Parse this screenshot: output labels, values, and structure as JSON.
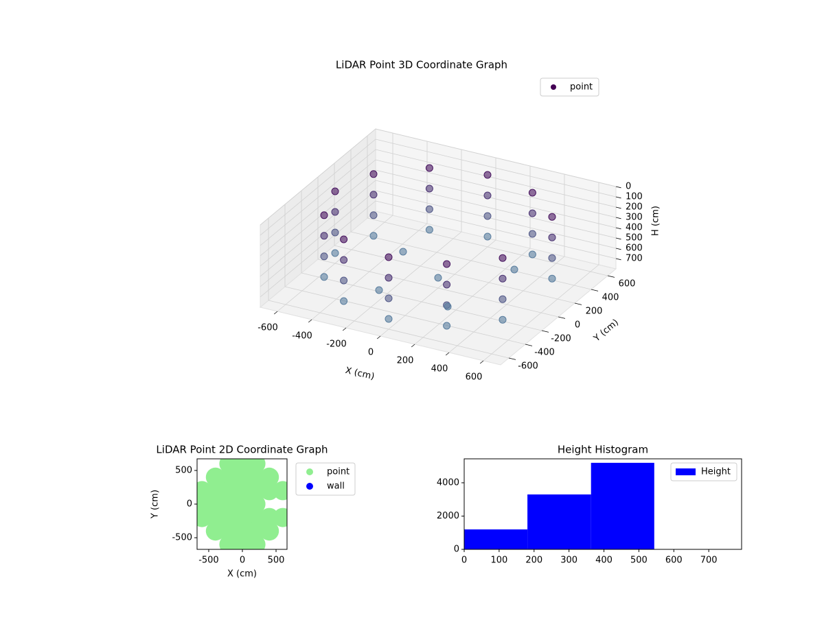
{
  "chart_data": [
    {
      "type": "scatter3d",
      "title": "LiDAR Point 3D Coordinate Graph",
      "xlabel": "X (cm)",
      "ylabel": "Y (cm)",
      "zlabel": "H (cm)",
      "xlim": [
        -700,
        700
      ],
      "ylim": [
        -700,
        700
      ],
      "zlim": [
        0,
        800
      ],
      "z_inverted": true,
      "xticks": [
        -600,
        -400,
        -200,
        0,
        200,
        400,
        600
      ],
      "yticks": [
        -600,
        -400,
        -200,
        0,
        200,
        400,
        600
      ],
      "zticks": [
        0,
        100,
        200,
        300,
        400,
        500,
        600,
        700
      ],
      "colormap": [
        "#440154",
        "#5c8fa8"
      ],
      "legend": "upper right",
      "series": [
        {
          "name": "point",
          "color": "#440154",
          "x": [
            520,
            300,
            0,
            -300,
            -520,
            -600,
            -520,
            -300,
            0,
            300,
            520,
            520,
            300,
            0,
            -300,
            -520,
            -600,
            -520,
            -300,
            0,
            300,
            520,
            520,
            300,
            0,
            -300,
            -520,
            -600,
            -520,
            -300,
            0,
            300,
            520,
            520,
            300,
            0,
            -300,
            -520,
            -600,
            -520,
            -300,
            0,
            300,
            520,
            0,
            -300,
            200,
            -200,
            300
          ],
          "y": [
            300,
            520,
            600,
            520,
            300,
            0,
            -300,
            -520,
            -600,
            -520,
            -300,
            300,
            520,
            600,
            520,
            300,
            0,
            -300,
            -520,
            -600,
            -520,
            -300,
            300,
            520,
            600,
            520,
            300,
            0,
            -300,
            -520,
            -600,
            -520,
            -300,
            300,
            520,
            600,
            520,
            300,
            0,
            -300,
            -520,
            -600,
            -520,
            -300,
            0,
            200,
            -300,
            -300,
            300
          ],
          "h": [
            100,
            100,
            100,
            100,
            100,
            100,
            100,
            100,
            100,
            100,
            100,
            300,
            300,
            300,
            300,
            300,
            300,
            300,
            300,
            300,
            300,
            300,
            500,
            500,
            500,
            500,
            500,
            500,
            500,
            500,
            500,
            500,
            500,
            700,
            700,
            700,
            700,
            700,
            700,
            700,
            700,
            700,
            700,
            700,
            700,
            700,
            700,
            700,
            700
          ]
        }
      ]
    },
    {
      "type": "scatter",
      "title": "LiDAR Point 2D Coordinate Graph",
      "xlabel": "X (cm)",
      "ylabel": "Y (cm)",
      "xlim": [
        -673,
        663
      ],
      "ylim": [
        -673,
        673
      ],
      "xticks": [
        -500,
        0,
        500
      ],
      "yticks": [
        -500,
        0,
        500
      ],
      "legend": "outside right",
      "series": [
        {
          "name": "point",
          "color": "#90ee90",
          "x": [
            -200,
            0,
            200,
            -400,
            -200,
            0,
            200,
            400,
            -600,
            -400,
            -200,
            0,
            200,
            400,
            600,
            -600,
            -400,
            -200,
            0,
            200,
            -600,
            -400,
            -200,
            0,
            200,
            400,
            600,
            -400,
            -200,
            0,
            200,
            400,
            -200,
            0,
            200
          ],
          "y": [
            600,
            600,
            600,
            400,
            400,
            400,
            400,
            400,
            200,
            200,
            200,
            200,
            200,
            200,
            200,
            0,
            0,
            0,
            0,
            0,
            -200,
            -200,
            -200,
            -200,
            -200,
            -200,
            -200,
            -400,
            -400,
            -400,
            -400,
            -400,
            -600,
            -600,
            -600
          ]
        },
        {
          "name": "wall",
          "color": "#0000ff",
          "x": [],
          "y": []
        }
      ]
    },
    {
      "type": "histogram",
      "title": "Height Histogram",
      "label": "Height",
      "color": "#0000ff",
      "bins": [
        0,
        181,
        363,
        544
      ],
      "values": [
        1200,
        3300,
        5200
      ],
      "xlim": [
        0,
        794
      ],
      "ylim": [
        0,
        5440
      ],
      "xticks": [
        0,
        100,
        200,
        300,
        400,
        500,
        600,
        700
      ],
      "yticks": [
        0,
        2000,
        4000
      ],
      "legend": "upper right"
    }
  ]
}
